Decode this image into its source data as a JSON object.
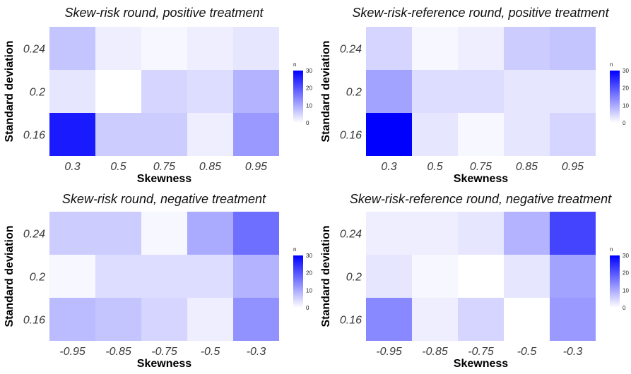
{
  "legend": {
    "title": "n",
    "ticks": [
      0,
      10,
      20,
      30
    ],
    "max": 30,
    "low_color": "#ffffff",
    "high_color": "#0000ff"
  },
  "chart_data": [
    {
      "type": "heatmap",
      "title": "Skew-risk round, positive treatment",
      "xlabel": "Skewness",
      "ylabel": "Standard deviation",
      "x_categories": [
        "0.3",
        "0.5",
        "0.75",
        "0.85",
        "0.95"
      ],
      "y_categories": [
        "0.24",
        "0.2",
        "0.16"
      ],
      "values": [
        [
          7,
          2,
          1,
          2,
          3
        ],
        [
          3,
          0,
          5,
          4,
          9
        ],
        [
          27,
          6,
          6,
          2,
          12
        ]
      ],
      "legend": "right"
    },
    {
      "type": "heatmap",
      "title": "Skew-risk-reference round, positive treatment",
      "xlabel": "Skewness",
      "ylabel": "Standard deviation",
      "x_categories": [
        "0.3",
        "0.5",
        "0.75",
        "0.85",
        "0.95"
      ],
      "y_categories": [
        "0.24",
        "0.2",
        "0.16"
      ],
      "values": [
        [
          5,
          1,
          2,
          6,
          7
        ],
        [
          11,
          4,
          4,
          3,
          3
        ],
        [
          30,
          3,
          1,
          3,
          5
        ]
      ],
      "legend": "right"
    },
    {
      "type": "heatmap",
      "title": "Skew-risk round, negative treatment",
      "xlabel": "Skewness",
      "ylabel": "Standard deviation",
      "x_categories": [
        "-0.95",
        "-0.85",
        "-0.75",
        "-0.5",
        "-0.3"
      ],
      "y_categories": [
        "0.24",
        "0.2",
        "0.16"
      ],
      "values": [
        [
          6,
          6,
          1,
          10,
          17
        ],
        [
          1,
          4,
          4,
          4,
          9
        ],
        [
          8,
          7,
          5,
          2,
          13
        ]
      ],
      "legend": "right"
    },
    {
      "type": "heatmap",
      "title": "Skew-risk-reference round, negative treatment",
      "xlabel": "Skewness",
      "ylabel": "Standard deviation",
      "x_categories": [
        "-0.95",
        "-0.85",
        "-0.75",
        "-0.5",
        "-0.3"
      ],
      "y_categories": [
        "0.24",
        "0.2",
        "0.16"
      ],
      "values": [
        [
          2,
          2,
          3,
          9,
          22
        ],
        [
          3,
          1,
          0,
          3,
          11
        ],
        [
          14,
          2,
          5,
          0,
          12
        ]
      ],
      "legend": "right"
    }
  ]
}
